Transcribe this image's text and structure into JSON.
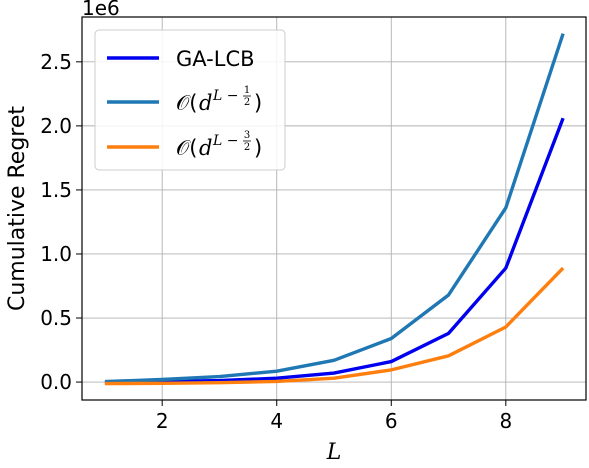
{
  "chart_data": {
    "type": "line",
    "xlabel": "L",
    "ylabel": "Cumulative Regret",
    "y_offset_text": "1e6",
    "x": [
      1,
      2,
      3,
      4,
      5,
      6,
      7,
      8,
      9
    ],
    "xlim": [
      0.6,
      9.4
    ],
    "ylim": [
      -0.14,
      2.85
    ],
    "xticks": [
      2,
      4,
      6,
      8
    ],
    "xtick_labels": [
      "2",
      "4",
      "6",
      "8"
    ],
    "yticks": [
      0.0,
      0.5,
      1.0,
      1.5,
      2.0,
      2.5
    ],
    "ytick_labels": [
      "0.0",
      "0.5",
      "1.0",
      "1.5",
      "2.0",
      "2.5"
    ],
    "grid": true,
    "legend_position": "upper-left",
    "series": [
      {
        "name": "GA-LCB",
        "color": "#0000ee",
        "values": [
          -0.005,
          0.005,
          0.012,
          0.03,
          0.07,
          0.16,
          0.38,
          0.89,
          2.06
        ]
      },
      {
        "name": "O(d^{L-1/2})",
        "color": "#1f77b4",
        "values": [
          0.004,
          0.02,
          0.043,
          0.085,
          0.17,
          0.34,
          0.68,
          1.36,
          2.72
        ]
      },
      {
        "name": "O(d^{L-3/2})",
        "color": "#ff7f0e",
        "values": [
          -0.012,
          -0.01,
          -0.005,
          0.005,
          0.03,
          0.095,
          0.205,
          0.43,
          0.89
        ]
      }
    ],
    "legend_math": [
      {
        "prefix": "𝒪(",
        "base": "d",
        "exp": "L − ",
        "num": "1",
        "den": "2",
        "suffix": ")"
      },
      {
        "prefix": "𝒪(",
        "base": "d",
        "exp": "L − ",
        "num": "3",
        "den": "2",
        "suffix": ")"
      }
    ]
  }
}
